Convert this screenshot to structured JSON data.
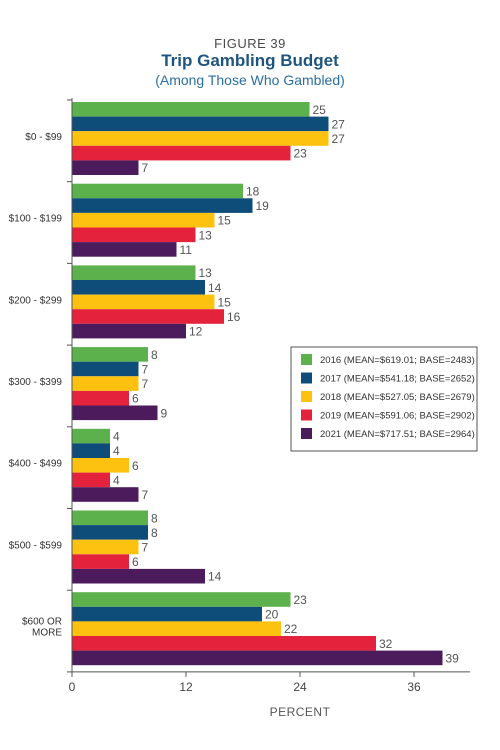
{
  "figure_label": "FIGURE 39",
  "chart_data": {
    "type": "bar",
    "orientation": "horizontal",
    "title": "Trip Gambling Budget",
    "subtitle": "(Among Those Who Gambled)",
    "xlabel": "PERCENT",
    "ylabel": "",
    "xlim": [
      0,
      40
    ],
    "xticks": [
      "0",
      "12",
      "24",
      "36"
    ],
    "categories": [
      "$0 - $99",
      "$100 - $199",
      "$200 - $299",
      "$300 - $399",
      "$400 - $499",
      "$500 - $599",
      "$600 OR MORE"
    ],
    "category_lines": [
      [
        "$0 - $99"
      ],
      [
        "$100 - $199"
      ],
      [
        "$200 - $299"
      ],
      [
        "$300 - $399"
      ],
      [
        "$400 - $499"
      ],
      [
        "$500 - $599"
      ],
      [
        "$600 OR",
        "MORE"
      ]
    ],
    "series": [
      {
        "name": "2016 (MEAN=$619.01; BASE=2483)",
        "color": "#5db14c",
        "values": [
          25,
          18,
          13,
          8,
          4,
          8,
          23
        ]
      },
      {
        "name": "2017 (MEAN=$541.18; BASE=2652)",
        "color": "#0e4d7a",
        "values": [
          27,
          19,
          14,
          7,
          4,
          8,
          20
        ]
      },
      {
        "name": "2018 (MEAN=$527.05; BASE=2679)",
        "color": "#fcc20f",
        "values": [
          27,
          15,
          15,
          7,
          6,
          7,
          22
        ]
      },
      {
        "name": "2019 (MEAN=$591.06; BASE=2902)",
        "color": "#e5223c",
        "values": [
          23,
          13,
          16,
          6,
          4,
          6,
          32
        ]
      },
      {
        "name": "2021 (MEAN=$717.51; BASE=2964)",
        "color": "#4b1b5c",
        "values": [
          7,
          11,
          12,
          9,
          7,
          14,
          39
        ]
      }
    ],
    "legend_position": "right-middle",
    "grid": false
  }
}
